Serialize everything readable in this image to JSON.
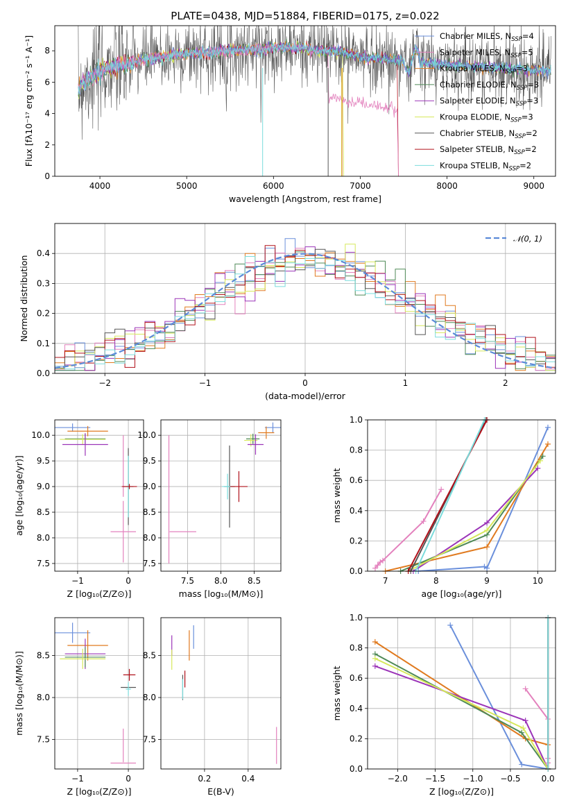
{
  "title": "PLATE=0438, MJD=51884, FIBERID=0175, z=0.022",
  "colors": {
    "chabrier_miles": "#6a8fdb",
    "salpeter_miles": "#e381bd",
    "kroupa_miles": "#e07a1f",
    "chabrier_elodie": "#4f8a57",
    "salpeter_elodie": "#9b34b8",
    "kroupa_elodie": "#d6e85a",
    "chabrier_stelib": "#555555",
    "salpeter_stelib": "#b0101a",
    "kroupa_stelib": "#7adcdc",
    "normal": "#5b8ad8",
    "grid": "#b0b0b0"
  },
  "chart_data": [
    {
      "id": "spectrum",
      "type": "line",
      "xlabel": "wavelength [Angstrom, rest frame]",
      "ylabel": "Flux [fλ10⁻¹⁷ erg cm⁻² s⁻¹ A⁻¹]",
      "xlim": [
        3480,
        9250
      ],
      "ylim": [
        0,
        9.6
      ],
      "xticks": [
        4000,
        5000,
        6000,
        7000,
        8000,
        9000
      ],
      "yticks": [
        0,
        2,
        4,
        6,
        8
      ],
      "grid": false,
      "legend_position": "top-right",
      "legend": [
        {
          "key": "chabrier_miles",
          "label": "Chabrier MILES, N",
          "sub": "SSP",
          "tail": "=4"
        },
        {
          "key": "salpeter_miles",
          "label": "Salpeter MILES, N",
          "sub": "SSP",
          "tail": "=5"
        },
        {
          "key": "kroupa_miles",
          "label": "Kroupa MILES, N",
          "sub": "SSP",
          "tail": "=3"
        },
        {
          "key": "chabrier_elodie",
          "label": "Chabrier ELODIE, N",
          "sub": "SSP",
          "tail": "=3"
        },
        {
          "key": "salpeter_elodie",
          "label": "Salpeter ELODIE, N",
          "sub": "SSP",
          "tail": "=3"
        },
        {
          "key": "kroupa_elodie",
          "label": "Kroupa ELODIE, N",
          "sub": "SSP",
          "tail": "=3"
        },
        {
          "key": "chabrier_stelib",
          "label": "Chabrier STELIB, N",
          "sub": "SSP",
          "tail": "=2"
        },
        {
          "key": "salpeter_stelib",
          "label": "Salpeter STELIB, N",
          "sub": "SSP",
          "tail": "=2"
        },
        {
          "key": "kroupa_stelib",
          "label": "Kroupa STELIB, N",
          "sub": "SSP",
          "tail": "=2"
        }
      ],
      "continuum": [
        [
          3750,
          5.4
        ],
        [
          3800,
          6.0
        ],
        [
          3900,
          6.3
        ],
        [
          4000,
          6.6
        ],
        [
          4100,
          7.0
        ],
        [
          4300,
          7.1
        ],
        [
          4500,
          7.4
        ],
        [
          4800,
          7.7
        ],
        [
          5000,
          7.8
        ],
        [
          5300,
          7.9
        ],
        [
          5500,
          8.0
        ],
        [
          5800,
          8.1
        ],
        [
          6000,
          8.2
        ],
        [
          6300,
          8.2
        ],
        [
          6500,
          8.0
        ],
        [
          6800,
          7.9
        ],
        [
          7000,
          7.6
        ],
        [
          7200,
          7.5
        ],
        [
          7500,
          7.4
        ],
        [
          7800,
          7.2
        ],
        [
          8000,
          7.1
        ],
        [
          8300,
          7.0
        ],
        [
          8600,
          6.9
        ],
        [
          8900,
          6.8
        ],
        [
          9200,
          6.7
        ]
      ]
    },
    {
      "id": "residuals",
      "type": "histogram",
      "xlabel": "(data-model)/error",
      "ylabel": "Normed distribution",
      "xlim": [
        -2.5,
        2.5
      ],
      "ylim": [
        0,
        0.5
      ],
      "xticks": [
        -2,
        -1,
        0,
        1,
        2
      ],
      "xtick_labels": [
        "−2",
        "−1",
        "0",
        "1",
        "2"
      ],
      "yticks": [
        0,
        0.1,
        0.2,
        0.3,
        0.4
      ],
      "ytick_labels": [
        "0.0",
        "0.1",
        "0.2",
        "0.3",
        "0.4"
      ],
      "grid": true,
      "legend_position": "top-right",
      "normal_label": "𝒩(0, 1)"
    },
    {
      "id": "age_vs_Z",
      "type": "errorbar",
      "xlabel": "Z [log₁₀(Z/Z⊙)]",
      "ylabel": "age  [log₁₀(age/yr)]",
      "xlim": [
        -1.45,
        0.3
      ],
      "ylim": [
        7.35,
        10.3
      ],
      "xticks": [
        -1,
        0
      ],
      "xtick_labels": [
        "−1",
        "0"
      ],
      "yticks": [
        7.5,
        8.0,
        8.5,
        9.0,
        9.5,
        10.0
      ],
      "ytick_labels": [
        "7.5",
        "8.0",
        "8.5",
        "9.0",
        "9.5",
        "10.0"
      ],
      "grid": true,
      "points": [
        {
          "key": "chabrier_miles",
          "x": -1.1,
          "xerr": 0.35,
          "y": 10.15,
          "yerr": 0.08
        },
        {
          "key": "kroupa_miles",
          "x": -0.8,
          "xerr": 0.4,
          "y": 10.08,
          "yerr": 0.1
        },
        {
          "key": "chabrier_elodie",
          "x": -0.85,
          "xerr": 0.4,
          "y": 9.93,
          "yerr": 0.1
        },
        {
          "key": "kroupa_elodie",
          "x": -0.9,
          "xerr": 0.45,
          "y": 9.92,
          "yerr": 0.1
        },
        {
          "key": "salpeter_elodie",
          "x": -0.85,
          "xerr": 0.45,
          "y": 9.82,
          "yerr": 0.22
        },
        {
          "key": "salpeter_miles",
          "x": -0.1,
          "xerr": 0.25,
          "y": 8.12,
          "yerr": 0.6
        },
        {
          "key": "salpeter_miles",
          "x": -0.1,
          "xerr": 0.0,
          "y": 9.4,
          "yerr": 0.6
        },
        {
          "key": "chabrier_stelib",
          "x": 0.0,
          "xerr": 0.1,
          "y": 9.0,
          "yerr": 0.75
        },
        {
          "key": "kroupa_stelib",
          "x": 0.0,
          "xerr": 0.05,
          "y": 9.0,
          "yerr": 0.6
        },
        {
          "key": "salpeter_stelib",
          "x": 0.02,
          "xerr": 0.15,
          "y": 9.0,
          "yerr": 0.05
        }
      ]
    },
    {
      "id": "age_vs_mass",
      "type": "errorbar",
      "xlabel": "mass [log₁₀(M/M⊙)]",
      "ylabel": "",
      "xlim": [
        7.1,
        8.9
      ],
      "ylim": [
        7.35,
        10.3
      ],
      "xticks": [
        7.5,
        8.0,
        8.5
      ],
      "xtick_labels": [
        "7.5",
        "8.0",
        "8.5"
      ],
      "yticks": [
        7.5,
        8.0,
        8.5,
        9.0,
        9.5,
        10.0
      ],
      "ytick_labels": [
        "7.5",
        "8.0",
        "8.5",
        "9.0",
        "9.5",
        "10.0"
      ],
      "grid": true,
      "points": [
        {
          "key": "chabrier_miles",
          "x": 8.78,
          "xerr": 0.12,
          "y": 10.15,
          "yerr": 0.1
        },
        {
          "key": "kroupa_miles",
          "x": 8.68,
          "xerr": 0.12,
          "y": 10.05,
          "yerr": 0.12
        },
        {
          "key": "chabrier_elodie",
          "x": 8.48,
          "xerr": 0.1,
          "y": 9.93,
          "yerr": 0.1
        },
        {
          "key": "kroupa_elodie",
          "x": 8.45,
          "xerr": 0.1,
          "y": 9.9,
          "yerr": 0.12
        },
        {
          "key": "salpeter_elodie",
          "x": 8.52,
          "xerr": 0.12,
          "y": 9.82,
          "yerr": 0.2
        },
        {
          "key": "salpeter_miles",
          "x": 7.22,
          "xerr": 0.0,
          "y": 8.75,
          "yerr": 1.25
        },
        {
          "key": "salpeter_miles",
          "x": 7.43,
          "xerr": 0.2,
          "y": 8.12,
          "yerr": 0.0
        },
        {
          "key": "chabrier_stelib",
          "x": 8.13,
          "xerr": 0.08,
          "y": 9.0,
          "yerr": 0.8
        },
        {
          "key": "kroupa_stelib",
          "x": 8.1,
          "xerr": 0.08,
          "y": 9.0,
          "yerr": 0.25
        },
        {
          "key": "salpeter_stelib",
          "x": 8.27,
          "xerr": 0.13,
          "y": 9.0,
          "yerr": 0.3
        }
      ]
    },
    {
      "id": "weight_vs_age",
      "type": "line",
      "xlabel": "age  [log₁₀(age/yr)]",
      "ylabel": "mass weight",
      "xlim": [
        6.65,
        10.35
      ],
      "ylim": [
        0,
        1
      ],
      "xticks": [
        7,
        8,
        9,
        10
      ],
      "xtick_labels": [
        "7",
        "8",
        "9",
        "10"
      ],
      "yticks": [
        0,
        0.2,
        0.4,
        0.6,
        0.8,
        1.0
      ],
      "ytick_labels": [
        "0.0",
        "0.2",
        "0.4",
        "0.6",
        "0.8",
        "1.0"
      ],
      "grid": true,
      "series": [
        {
          "key": "salpeter_miles",
          "x": [
            6.8,
            6.85,
            6.9,
            6.95,
            7.75,
            8.1
          ],
          "y": [
            0.02,
            0.04,
            0.06,
            0.07,
            0.33,
            0.54
          ]
        },
        {
          "key": "chabrier_miles",
          "x": [
            7.65,
            8.95,
            9.0,
            10.2
          ],
          "y": [
            0.0,
            0.03,
            0.02,
            0.95
          ]
        },
        {
          "key": "kroupa_miles",
          "x": [
            7.0,
            9.0,
            10.2
          ],
          "y": [
            0.0,
            0.16,
            0.84
          ]
        },
        {
          "key": "chabrier_elodie",
          "x": [
            7.3,
            9.0,
            10.1
          ],
          "y": [
            0.0,
            0.24,
            0.76
          ]
        },
        {
          "key": "salpeter_elodie",
          "x": [
            7.55,
            9.0,
            10.0
          ],
          "y": [
            0.0,
            0.32,
            0.68
          ]
        },
        {
          "key": "kroupa_elodie",
          "x": [
            7.45,
            9.0,
            10.05
          ],
          "y": [
            0.0,
            0.27,
            0.73
          ]
        },
        {
          "key": "chabrier_stelib",
          "x": [
            7.5,
            8.98
          ],
          "y": [
            0.0,
            1.0
          ]
        },
        {
          "key": "salpeter_stelib",
          "x": [
            7.45,
            9.0
          ],
          "y": [
            0.0,
            1.0
          ]
        },
        {
          "key": "kroupa_stelib",
          "x": [
            7.6,
            8.95
          ],
          "y": [
            0.0,
            1.0
          ]
        }
      ]
    },
    {
      "id": "mass_vs_Z",
      "type": "errorbar",
      "xlabel": "Z [log₁₀(Z/Z⊙)]",
      "ylabel": "mass [log₁₀(M/M⊙)]",
      "xlim": [
        -1.45,
        0.3
      ],
      "ylim": [
        7.15,
        8.95
      ],
      "xticks": [
        -1,
        0
      ],
      "xtick_labels": [
        "−1",
        "0"
      ],
      "yticks": [
        7.5,
        8.0,
        8.5
      ],
      "ytick_labels": [
        "7.5",
        "8.0",
        "8.5"
      ],
      "grid": true,
      "points": [
        {
          "key": "chabrier_miles",
          "x": -1.1,
          "xerr": 0.35,
          "y": 8.77,
          "yerr": 0.12
        },
        {
          "key": "kroupa_miles",
          "x": -0.8,
          "xerr": 0.4,
          "y": 8.62,
          "yerr": 0.18
        },
        {
          "key": "salpeter_elodie",
          "x": -0.85,
          "xerr": 0.4,
          "y": 8.52,
          "yerr": 0.18
        },
        {
          "key": "chabrier_elodie",
          "x": -0.85,
          "xerr": 0.4,
          "y": 8.48,
          "yerr": 0.12
        },
        {
          "key": "kroupa_elodie",
          "x": -0.9,
          "xerr": 0.45,
          "y": 8.46,
          "yerr": 0.12
        },
        {
          "key": "salpeter_stelib",
          "x": 0.02,
          "xerr": 0.12,
          "y": 8.27,
          "yerr": 0.07
        },
        {
          "key": "chabrier_stelib",
          "x": 0.0,
          "xerr": 0.15,
          "y": 8.12,
          "yerr": 0.0
        },
        {
          "key": "kroupa_stelib",
          "x": 0.0,
          "xerr": 0.05,
          "y": 8.1,
          "yerr": 0.08
        },
        {
          "key": "salpeter_miles",
          "x": -0.1,
          "xerr": 0.25,
          "y": 7.22,
          "yerr": 0.0
        },
        {
          "key": "salpeter_miles",
          "x": -0.1,
          "xerr": 0.0,
          "y": 7.43,
          "yerr": 0.2
        }
      ]
    },
    {
      "id": "mass_vs_EBV",
      "type": "errorbar",
      "xlabel": "E(B-V)",
      "ylabel": "",
      "xlim": [
        0.0,
        0.55
      ],
      "ylim": [
        7.15,
        8.95
      ],
      "xticks": [
        0.2,
        0.4
      ],
      "xtick_labels": [
        "0.2",
        "0.4"
      ],
      "yticks": [
        7.5,
        8.0,
        8.5
      ],
      "ytick_labels": [
        "7.5",
        "8.0",
        "8.5"
      ],
      "grid": true,
      "points": [
        {
          "key": "salpeter_elodie",
          "x": 0.05,
          "xerr": 0.0,
          "y": 8.62,
          "yerr": 0.12
        },
        {
          "key": "kroupa_elodie",
          "x": 0.05,
          "xerr": 0.0,
          "y": 8.45,
          "yerr": 0.12
        },
        {
          "key": "chabrier_miles",
          "x": 0.15,
          "xerr": 0.0,
          "y": 8.72,
          "yerr": 0.14
        },
        {
          "key": "kroupa_miles",
          "x": 0.13,
          "xerr": 0.0,
          "y": 8.62,
          "yerr": 0.18
        },
        {
          "key": "chabrier_stelib",
          "x": 0.1,
          "xerr": 0.0,
          "y": 8.12,
          "yerr": 0.15
        },
        {
          "key": "kroupa_stelib",
          "x": 0.1,
          "xerr": 0.0,
          "y": 8.1,
          "yerr": 0.12
        },
        {
          "key": "salpeter_stelib",
          "x": 0.11,
          "xerr": 0.0,
          "y": 8.22,
          "yerr": 0.1
        },
        {
          "key": "salpeter_miles",
          "x": 0.53,
          "xerr": 0.0,
          "y": 7.43,
          "yerr": 0.22
        }
      ]
    },
    {
      "id": "weight_vs_Z",
      "type": "line",
      "xlabel": "Z [log₁₀(Z/Z⊙)]",
      "ylabel": "mass weight",
      "xlim": [
        -2.4,
        0.1
      ],
      "ylim": [
        0,
        1
      ],
      "xticks": [
        -2.0,
        -1.5,
        -1.0,
        -0.5,
        0.0
      ],
      "xtick_labels": [
        "−2.0",
        "−1.5",
        "−1.0",
        "−0.5",
        "0.0"
      ],
      "yticks": [
        0,
        0.2,
        0.4,
        0.6,
        0.8,
        1.0
      ],
      "ytick_labels": [
        "0.0",
        "0.2",
        "0.4",
        "0.6",
        "0.8",
        "1.0"
      ],
      "grid": true,
      "series": [
        {
          "key": "chabrier_miles",
          "x": [
            -1.3,
            -0.35,
            0.0
          ],
          "y": [
            0.95,
            0.03,
            0.0
          ]
        },
        {
          "key": "kroupa_miles",
          "x": [
            -2.3,
            -0.3,
            0.0
          ],
          "y": [
            0.84,
            0.2,
            0.16
          ]
        },
        {
          "key": "chabrier_elodie",
          "x": [
            -2.3,
            -0.35,
            0.0
          ],
          "y": [
            0.76,
            0.24,
            0.0
          ]
        },
        {
          "key": "salpeter_elodie",
          "x": [
            -2.3,
            -0.3,
            0.0
          ],
          "y": [
            0.68,
            0.32,
            0.0
          ]
        },
        {
          "key": "kroupa_elodie",
          "x": [
            -2.3,
            -0.33,
            0.0
          ],
          "y": [
            0.73,
            0.27,
            0.0
          ]
        },
        {
          "key": "salpeter_miles",
          "x": [
            -0.3,
            0.0,
            0.0,
            0.0
          ],
          "y": [
            0.53,
            0.33,
            0.07,
            0.04
          ]
        },
        {
          "key": "chabrier_stelib",
          "x": [
            0.0,
            0.0
          ],
          "y": [
            0.0,
            1.0
          ]
        },
        {
          "key": "salpeter_stelib",
          "x": [
            0.0,
            0.0
          ],
          "y": [
            0.0,
            1.0
          ]
        },
        {
          "key": "kroupa_stelib",
          "x": [
            0.0,
            0.0
          ],
          "y": [
            0.0,
            1.0
          ]
        }
      ]
    }
  ]
}
